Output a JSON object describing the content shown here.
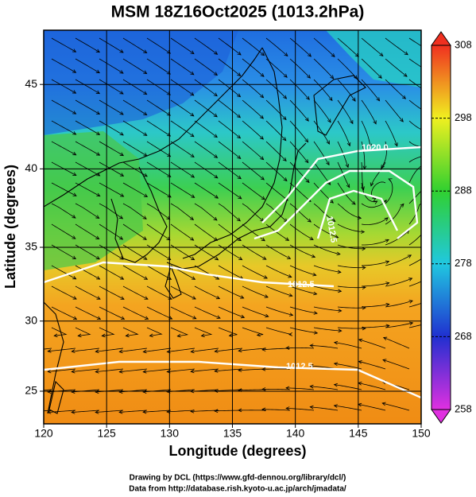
{
  "title": "MSM 18Z16Oct2025 (1013.2hPa)",
  "x_axis": {
    "label": "Longitude (degrees)",
    "lim": [
      120,
      150
    ],
    "ticks": [
      120,
      125,
      130,
      135,
      140,
      145,
      150
    ]
  },
  "y_axis": {
    "label": "Latitude  (degrees)",
    "lim": [
      22.6,
      48
    ],
    "ticks": [
      25,
      30,
      35,
      40,
      45
    ]
  },
  "colorbar": {
    "lim": [
      258,
      308
    ],
    "ticks": [
      258,
      268,
      278,
      288,
      298,
      308
    ]
  },
  "contour_labels": [
    "1020.0",
    "1012.5",
    "1012.5",
    "1012.5"
  ],
  "footer": [
    "Drawing by DCL (https://www.gfd-dennou.org/library/dcl/)",
    "Data from http://database.rish.kyoto-u.ac.jp/arch/jmadata/"
  ]
}
